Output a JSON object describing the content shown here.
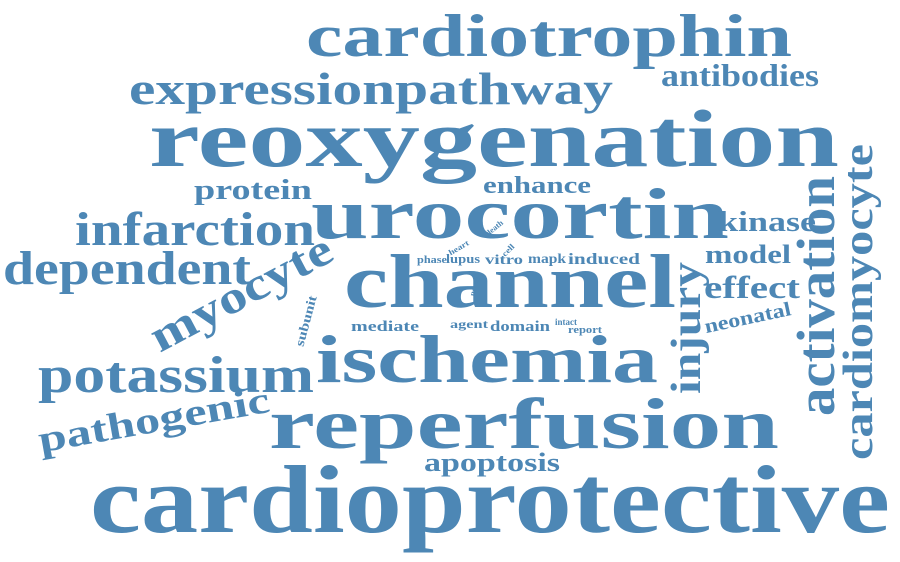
{
  "color": "#4d87b5",
  "words": [
    "cardioprotective",
    "reoxygenation",
    "reperfusion",
    "cardiotrophin",
    "urocortin",
    "channel",
    "ischemia",
    "expressionpathway",
    "potassium",
    "dependent",
    "infarction",
    "activation",
    "cardiomyocyte",
    "myocyte",
    "pathogenic",
    "antibodies",
    "injury",
    "apoptosis",
    "protein",
    "enhance",
    "kinase",
    "model",
    "effect",
    "neonatal",
    "subunit",
    "mediate",
    "agent",
    "domain",
    "report",
    "intact",
    "phase",
    "lupus",
    "vitro",
    "mapk",
    "induced",
    "heart",
    "death",
    "cell",
    "novel"
  ]
}
